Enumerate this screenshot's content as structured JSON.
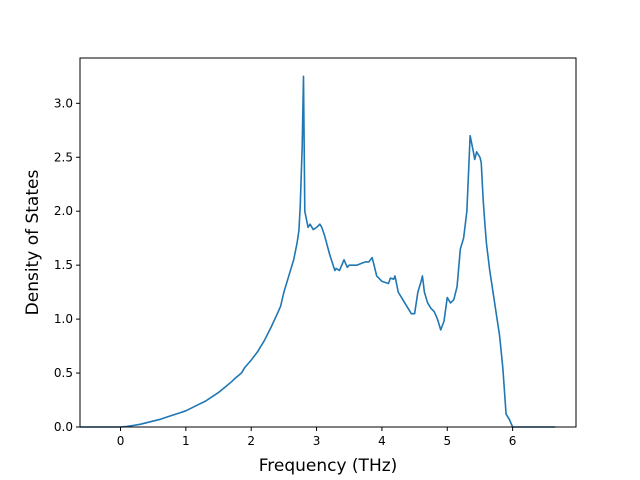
{
  "chart_data": {
    "type": "line",
    "title": "",
    "xlabel": "Frequency (THz)",
    "ylabel": "Density of States",
    "xlim": [
      -0.62,
      6.97
    ],
    "ylim": [
      0,
      3.42
    ],
    "xticks": [
      0,
      1,
      2,
      3,
      4,
      5,
      6
    ],
    "yticks": [
      0.0,
      0.5,
      1.0,
      1.5,
      2.0,
      2.5,
      3.0
    ],
    "xtick_labels": [
      "0",
      "1",
      "2",
      "3",
      "4",
      "5",
      "6"
    ],
    "ytick_labels": [
      "0.0",
      "0.5",
      "1.0",
      "1.5",
      "2.0",
      "2.5",
      "3.0"
    ],
    "grid": false,
    "legend": "none",
    "line_color": "#1f77b4",
    "series": [
      {
        "x": [
          -0.62,
          -0.3,
          0.0,
          0.1,
          0.2,
          0.3,
          0.4,
          0.5,
          0.6,
          0.7,
          0.8,
          0.9,
          1.0,
          1.1,
          1.2,
          1.3,
          1.4,
          1.5,
          1.6,
          1.7,
          1.75,
          1.85,
          1.9,
          2.0,
          2.1,
          2.2,
          2.3,
          2.4,
          2.45,
          2.5,
          2.6,
          2.65,
          2.7,
          2.73,
          2.75,
          2.78,
          2.8,
          2.82,
          2.87,
          2.9,
          2.95,
          3.0,
          3.05,
          3.08,
          3.12,
          3.2,
          3.28,
          3.3,
          3.35,
          3.42,
          3.47,
          3.5,
          3.55,
          3.62,
          3.7,
          3.75,
          3.8,
          3.85,
          3.88,
          3.92,
          4.0,
          4.1,
          4.13,
          4.18,
          4.2,
          4.25,
          4.3,
          4.35,
          4.4,
          4.45,
          4.5,
          4.55,
          4.6,
          4.62,
          4.65,
          4.7,
          4.75,
          4.8,
          4.85,
          4.9,
          4.95,
          5.0,
          5.05,
          5.1,
          5.15,
          5.2,
          5.25,
          5.3,
          5.35,
          5.4,
          5.42,
          5.45,
          5.5,
          5.52,
          5.55,
          5.58,
          5.6,
          5.65,
          5.7,
          5.75,
          5.8,
          5.85,
          5.9,
          5.95,
          6.0,
          6.05,
          6.3,
          6.65
        ],
        "y": [
          0.0,
          0.0,
          0.0,
          0.005,
          0.015,
          0.025,
          0.04,
          0.055,
          0.07,
          0.09,
          0.11,
          0.13,
          0.15,
          0.18,
          0.21,
          0.24,
          0.28,
          0.32,
          0.37,
          0.42,
          0.45,
          0.5,
          0.55,
          0.62,
          0.7,
          0.8,
          0.92,
          1.05,
          1.12,
          1.25,
          1.45,
          1.55,
          1.7,
          1.82,
          2.05,
          2.6,
          3.25,
          2.0,
          1.85,
          1.88,
          1.83,
          1.85,
          1.88,
          1.85,
          1.78,
          1.6,
          1.45,
          1.47,
          1.45,
          1.55,
          1.48,
          1.5,
          1.5,
          1.5,
          1.52,
          1.53,
          1.53,
          1.57,
          1.5,
          1.4,
          1.35,
          1.33,
          1.38,
          1.37,
          1.4,
          1.25,
          1.2,
          1.15,
          1.1,
          1.05,
          1.05,
          1.25,
          1.35,
          1.4,
          1.25,
          1.15,
          1.1,
          1.07,
          1.0,
          0.9,
          0.98,
          1.2,
          1.15,
          1.18,
          1.3,
          1.65,
          1.75,
          2.0,
          2.7,
          2.55,
          2.48,
          2.55,
          2.5,
          2.45,
          2.1,
          1.85,
          1.7,
          1.45,
          1.25,
          1.05,
          0.85,
          0.55,
          0.12,
          0.07,
          0.0,
          0.0,
          0.0,
          0.0
        ]
      }
    ]
  }
}
